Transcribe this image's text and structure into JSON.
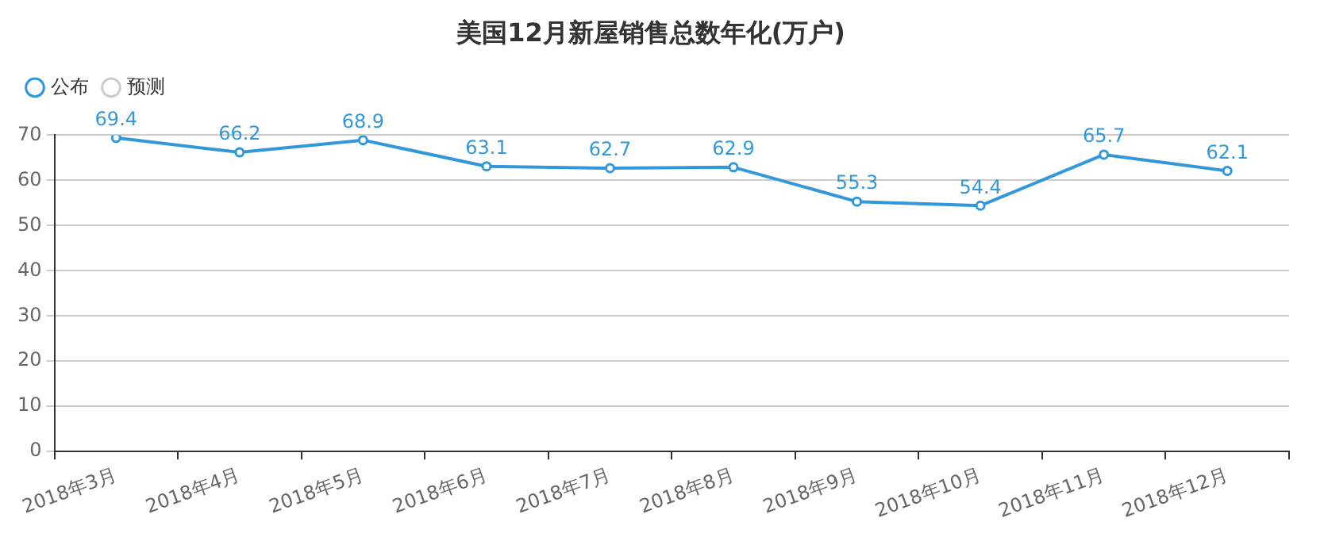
{
  "chart_data": {
    "type": "line",
    "title": "美国12月新屋销售总数年化(万户)",
    "categories": [
      "2018年3月",
      "2018年4月",
      "2018年5月",
      "2018年6月",
      "2018年7月",
      "2018年8月",
      "2018年9月",
      "2018年10月",
      "2018年11月",
      "2018年12月"
    ],
    "series": [
      {
        "name": "公布",
        "color": "#3398db",
        "values": [
          69.4,
          66.2,
          68.9,
          63.1,
          62.7,
          62.9,
          55.3,
          54.4,
          65.7,
          62.1
        ]
      },
      {
        "name": "预测",
        "color": "#cccccc",
        "values": [
          null,
          null,
          null,
          null,
          null,
          null,
          null,
          null,
          null,
          null
        ]
      }
    ],
    "ylim": [
      0,
      70
    ],
    "yticks": [
      0,
      10,
      20,
      30,
      40,
      50,
      60,
      70
    ],
    "grid": "y",
    "legend": "top left",
    "marker": "circle",
    "line_style": "solid",
    "data_labels": true
  }
}
